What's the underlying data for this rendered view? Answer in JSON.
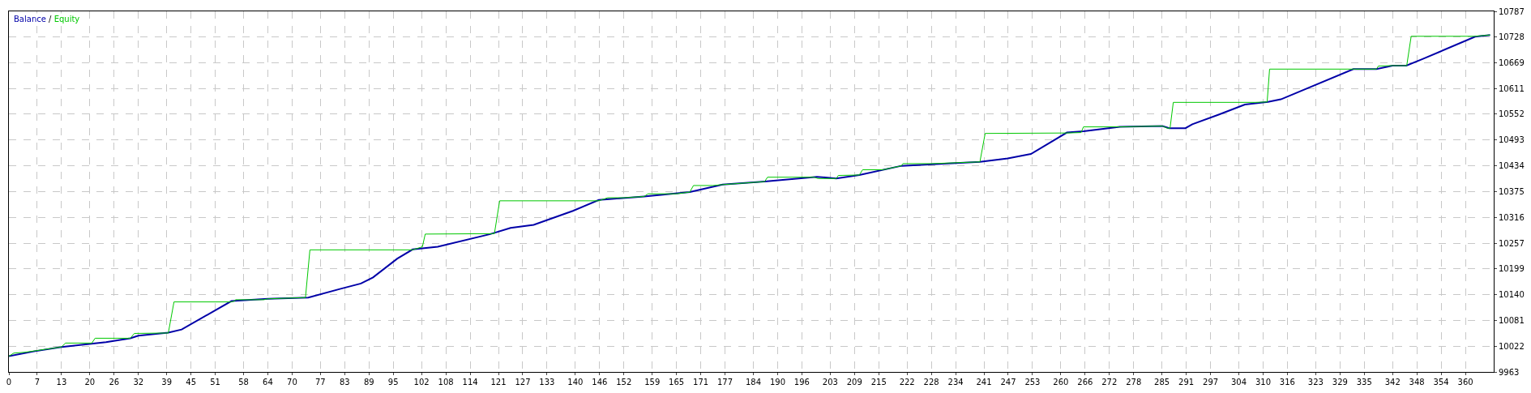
{
  "chart_data": {
    "type": "line",
    "legend": "top left",
    "grid": true,
    "annotations": [
      "/"
    ],
    "xlim": [
      0,
      367
    ],
    "ylim": [
      9963,
      10787
    ],
    "xticks": [
      0,
      7,
      13,
      20,
      26,
      32,
      39,
      45,
      51,
      58,
      64,
      70,
      77,
      83,
      89,
      95,
      102,
      108,
      114,
      121,
      127,
      133,
      140,
      146,
      152,
      159,
      165,
      171,
      177,
      184,
      190,
      196,
      203,
      209,
      215,
      222,
      228,
      234,
      241,
      247,
      253,
      260,
      266,
      272,
      278,
      285,
      291,
      297,
      304,
      310,
      316,
      323,
      329,
      335,
      342,
      348,
      354,
      360
    ],
    "yticks": [
      9963,
      10022,
      10081,
      10140,
      10199,
      10257,
      10316,
      10375,
      10434,
      10493,
      10552,
      10611,
      10669,
      10728,
      10787
    ],
    "series": [
      {
        "name": "Balance",
        "color": "#0000a8",
        "x": [
          0,
          6.2,
          13,
          24,
          30,
          32,
          39.4,
          42.7,
          55,
          64,
          74,
          82,
          87,
          90,
          96,
          99.8,
          106,
          119,
          124,
          129.7,
          139.4,
          145.8,
          157,
          168.3,
          176.4,
          186.8,
          199.7,
          204.5,
          210.2,
          220.6,
          240,
          246.9,
          252.6,
          261.5,
          265.6,
          274.6,
          285.1,
          286.8,
          290.8,
          292.5,
          299,
          305.5,
          311.2,
          314.4,
          332.3,
          338,
          342,
          345.4,
          349.4,
          362.4,
          366.1
        ],
        "values": [
          9999,
          10010,
          10020,
          10031,
          10040,
          10046,
          10053,
          10060,
          10125,
          10130,
          10133,
          10153,
          10165,
          10179,
          10222,
          10243,
          10249,
          10278,
          10292,
          10299,
          10331,
          10356,
          10364,
          10374,
          10391,
          10398,
          10409,
          10405,
          10413,
          10434,
          10443,
          10451,
          10461,
          10510,
          10513,
          10523,
          10525,
          10520,
          10520,
          10529,
          10551,
          10574,
          10580,
          10586,
          10655,
          10655,
          10663,
          10663,
          10678,
          10729,
          10733
        ]
      },
      {
        "name": "Equity",
        "color": "#00c800",
        "x": [
          0,
          1.2,
          4,
          13,
          14,
          20.5,
          21.3,
          30,
          31,
          39.4,
          40.8,
          55,
          55.8,
          56,
          63,
          64,
          73.3,
          74.4,
          99.8,
          102.2,
          102.9,
          120,
          121.3,
          145.8,
          148,
          152,
          157,
          158,
          165,
          168.3,
          169.2,
          174,
          176.4,
          186.8,
          187.5,
          199,
          200,
          204.5,
          205,
          210.2,
          211,
          216,
          220.6,
          221,
          228,
          240,
          241.3,
          261.5,
          265,
          265.6,
          274.6,
          285.1,
          286.3,
          287,
          287.8,
          308,
          311,
          311.6,
          332.3,
          338,
          338.5,
          342,
          345.5,
          346.6,
          362.4,
          366.1
        ],
        "values": [
          9999,
          10006,
          10008,
          10020,
          10029,
          10029,
          10040,
          10040,
          10051,
          10052,
          10123,
          10123,
          10125,
          10128,
          10128,
          10130,
          10133,
          10242,
          10242,
          10249,
          10278,
          10279,
          10354,
          10354,
          10361,
          10361,
          10364,
          10370,
          10370,
          10374,
          10389,
          10389,
          10391,
          10398,
          10408,
          10408,
          10405,
          10405,
          10412,
          10413,
          10425,
          10425,
          10434,
          10439,
          10439,
          10443,
          10508,
          10509,
          10510,
          10523,
          10523,
          10525,
          10520,
          10520,
          10579,
          10579,
          10580,
          10655,
          10655,
          10655,
          10662,
          10663,
          10663,
          10730,
          10730,
          10733
        ]
      }
    ]
  }
}
